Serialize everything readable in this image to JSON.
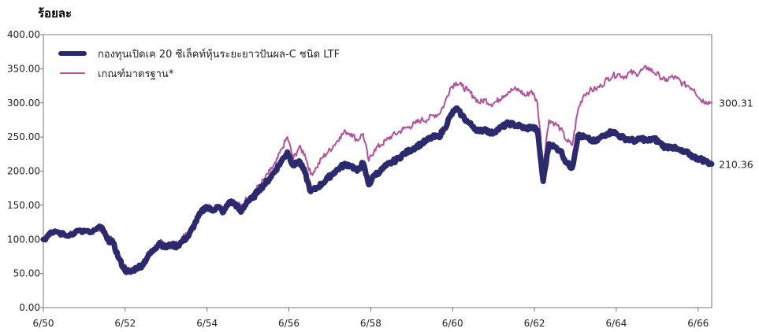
{
  "chart_data": {
    "type": "line",
    "ylabel": "ร้อยละ",
    "ylim": [
      0,
      400
    ],
    "y_ticks": [
      "0.00",
      "50.00",
      "100.00",
      "150.00",
      "200.00",
      "250.00",
      "300.00",
      "350.00",
      "400.00"
    ],
    "x_ticks": [
      "6/50",
      "6/52",
      "6/54",
      "6/56",
      "6/58",
      "6/60",
      "6/62",
      "6/64",
      "6/66"
    ],
    "x_period": [
      "6/50",
      "8/66"
    ],
    "grid": false,
    "legend_position": "top-left",
    "series": [
      {
        "name": "กองทุนเปิดเค 20 ซีเล็คท์หุ้นระยะยาวปันผล-C ชนิด LTF",
        "color": "#2b2a6e",
        "end_label": "210.36",
        "points": [
          [
            0,
            100
          ],
          [
            2,
            112
          ],
          [
            4,
            105
          ],
          [
            6,
            113
          ],
          [
            8,
            110
          ],
          [
            10,
            118
          ],
          [
            11,
            100
          ],
          [
            12,
            95
          ],
          [
            13,
            72
          ],
          [
            14,
            55
          ],
          [
            15,
            52
          ],
          [
            16,
            58
          ],
          [
            17,
            62
          ],
          [
            18,
            75
          ],
          [
            19,
            85
          ],
          [
            20,
            95
          ],
          [
            21,
            88
          ],
          [
            22,
            92
          ],
          [
            23,
            90
          ],
          [
            24,
            98
          ],
          [
            25,
            105
          ],
          [
            26,
            122
          ],
          [
            27,
            138
          ],
          [
            28,
            148
          ],
          [
            29,
            142
          ],
          [
            30,
            148
          ],
          [
            31,
            140
          ],
          [
            32,
            155
          ],
          [
            33,
            152
          ],
          [
            34,
            140
          ],
          [
            35,
            155
          ],
          [
            36,
            160
          ],
          [
            37,
            172
          ],
          [
            38,
            180
          ],
          [
            39,
            190
          ],
          [
            40,
            202
          ],
          [
            41,
            215
          ],
          [
            42,
            228
          ],
          [
            43,
            208
          ],
          [
            44,
            215
          ],
          [
            45,
            198
          ],
          [
            46,
            170
          ],
          [
            47,
            175
          ],
          [
            48,
            182
          ],
          [
            49,
            190
          ],
          [
            50,
            198
          ],
          [
            51,
            205
          ],
          [
            52,
            210
          ],
          [
            53,
            208
          ],
          [
            54,
            200
          ],
          [
            55,
            212
          ],
          [
            56,
            180
          ],
          [
            57,
            195
          ],
          [
            58,
            200
          ],
          [
            59,
            208
          ],
          [
            60,
            213
          ],
          [
            61,
            218
          ],
          [
            62,
            225
          ],
          [
            63,
            230
          ],
          [
            64,
            235
          ],
          [
            65,
            240
          ],
          [
            66,
            245
          ],
          [
            67,
            250
          ],
          [
            68,
            250
          ],
          [
            69,
            262
          ],
          [
            70,
            280
          ],
          [
            71,
            292
          ],
          [
            72,
            282
          ],
          [
            73,
            272
          ],
          [
            74,
            265
          ],
          [
            75,
            258
          ],
          [
            76,
            262
          ],
          [
            77,
            255
          ],
          [
            78,
            260
          ],
          [
            79,
            265
          ],
          [
            80,
            270
          ],
          [
            81,
            268
          ],
          [
            82,
            266
          ],
          [
            83,
            262
          ],
          [
            84,
            265
          ],
          [
            85,
            260
          ],
          [
            86,
            185
          ],
          [
            87,
            240
          ],
          [
            88,
            235
          ],
          [
            89,
            230
          ],
          [
            90,
            212
          ],
          [
            91,
            205
          ],
          [
            92,
            252
          ],
          [
            93,
            250
          ],
          [
            94,
            246
          ],
          [
            95,
            243
          ],
          [
            96,
            250
          ],
          [
            97,
            255
          ],
          [
            98,
            258
          ],
          [
            99,
            252
          ],
          [
            100,
            248
          ],
          [
            101,
            246
          ],
          [
            102,
            244
          ],
          [
            103,
            248
          ],
          [
            104,
            244
          ],
          [
            105,
            248
          ],
          [
            106,
            242
          ],
          [
            107,
            235
          ],
          [
            108,
            236
          ],
          [
            109,
            232
          ],
          [
            110,
            228
          ],
          [
            111,
            226
          ],
          [
            112,
            220
          ],
          [
            113,
            218
          ],
          [
            114,
            214
          ],
          [
            115,
            210.36
          ]
        ]
      },
      {
        "name": "เกณฑ์มาตรฐาน*",
        "color": "#b3509f",
        "end_label": "300.31",
        "points": [
          [
            0,
            102
          ],
          [
            2,
            110
          ],
          [
            4,
            108
          ],
          [
            6,
            112
          ],
          [
            8,
            110
          ],
          [
            10,
            116
          ],
          [
            11,
            104
          ],
          [
            12,
            98
          ],
          [
            13,
            75
          ],
          [
            14,
            60
          ],
          [
            15,
            55
          ],
          [
            16,
            60
          ],
          [
            17,
            65
          ],
          [
            18,
            78
          ],
          [
            19,
            88
          ],
          [
            20,
            96
          ],
          [
            21,
            92
          ],
          [
            22,
            95
          ],
          [
            23,
            93
          ],
          [
            24,
            102
          ],
          [
            25,
            110
          ],
          [
            26,
            125
          ],
          [
            27,
            140
          ],
          [
            28,
            150
          ],
          [
            29,
            146
          ],
          [
            30,
            150
          ],
          [
            31,
            145
          ],
          [
            32,
            158
          ],
          [
            33,
            155
          ],
          [
            34,
            148
          ],
          [
            35,
            160
          ],
          [
            36,
            165
          ],
          [
            37,
            178
          ],
          [
            38,
            188
          ],
          [
            39,
            200
          ],
          [
            40,
            212
          ],
          [
            41,
            232
          ],
          [
            42,
            250
          ],
          [
            43,
            218
          ],
          [
            44,
            235
          ],
          [
            45,
            225
          ],
          [
            46,
            195
          ],
          [
            47,
            205
          ],
          [
            48,
            220
          ],
          [
            49,
            228
          ],
          [
            50,
            238
          ],
          [
            51,
            250
          ],
          [
            52,
            258
          ],
          [
            53,
            255
          ],
          [
            54,
            245
          ],
          [
            55,
            255
          ],
          [
            56,
            215
          ],
          [
            57,
            232
          ],
          [
            58,
            238
          ],
          [
            59,
            245
          ],
          [
            60,
            252
          ],
          [
            61,
            256
          ],
          [
            62,
            262
          ],
          [
            63,
            265
          ],
          [
            64,
            270
          ],
          [
            65,
            275
          ],
          [
            66,
            275
          ],
          [
            67,
            282
          ],
          [
            68,
            283
          ],
          [
            69,
            298
          ],
          [
            70,
            322
          ],
          [
            71,
            330
          ],
          [
            72,
            325
          ],
          [
            73,
            318
          ],
          [
            74,
            310
          ],
          [
            75,
            300
          ],
          [
            76,
            305
          ],
          [
            77,
            298
          ],
          [
            78,
            302
          ],
          [
            79,
            310
          ],
          [
            80,
            316
          ],
          [
            81,
            320
          ],
          [
            82,
            318
          ],
          [
            83,
            310
          ],
          [
            84,
            318
          ],
          [
            85,
            300
          ],
          [
            86,
            210
          ],
          [
            87,
            275
          ],
          [
            88,
            270
          ],
          [
            89,
            262
          ],
          [
            90,
            245
          ],
          [
            91,
            238
          ],
          [
            92,
            290
          ],
          [
            93,
            312
          ],
          [
            94,
            318
          ],
          [
            95,
            320
          ],
          [
            96,
            325
          ],
          [
            97,
            335
          ],
          [
            98,
            340
          ],
          [
            99,
            342
          ],
          [
            100,
            338
          ],
          [
            101,
            345
          ],
          [
            102,
            342
          ],
          [
            103,
            348
          ],
          [
            104,
            352
          ],
          [
            105,
            345
          ],
          [
            106,
            340
          ],
          [
            107,
            332
          ],
          [
            108,
            338
          ],
          [
            109,
            336
          ],
          [
            110,
            328
          ],
          [
            111,
            325
          ],
          [
            112,
            320
          ],
          [
            113,
            305
          ],
          [
            114,
            302
          ],
          [
            115,
            300.31
          ]
        ]
      }
    ]
  }
}
